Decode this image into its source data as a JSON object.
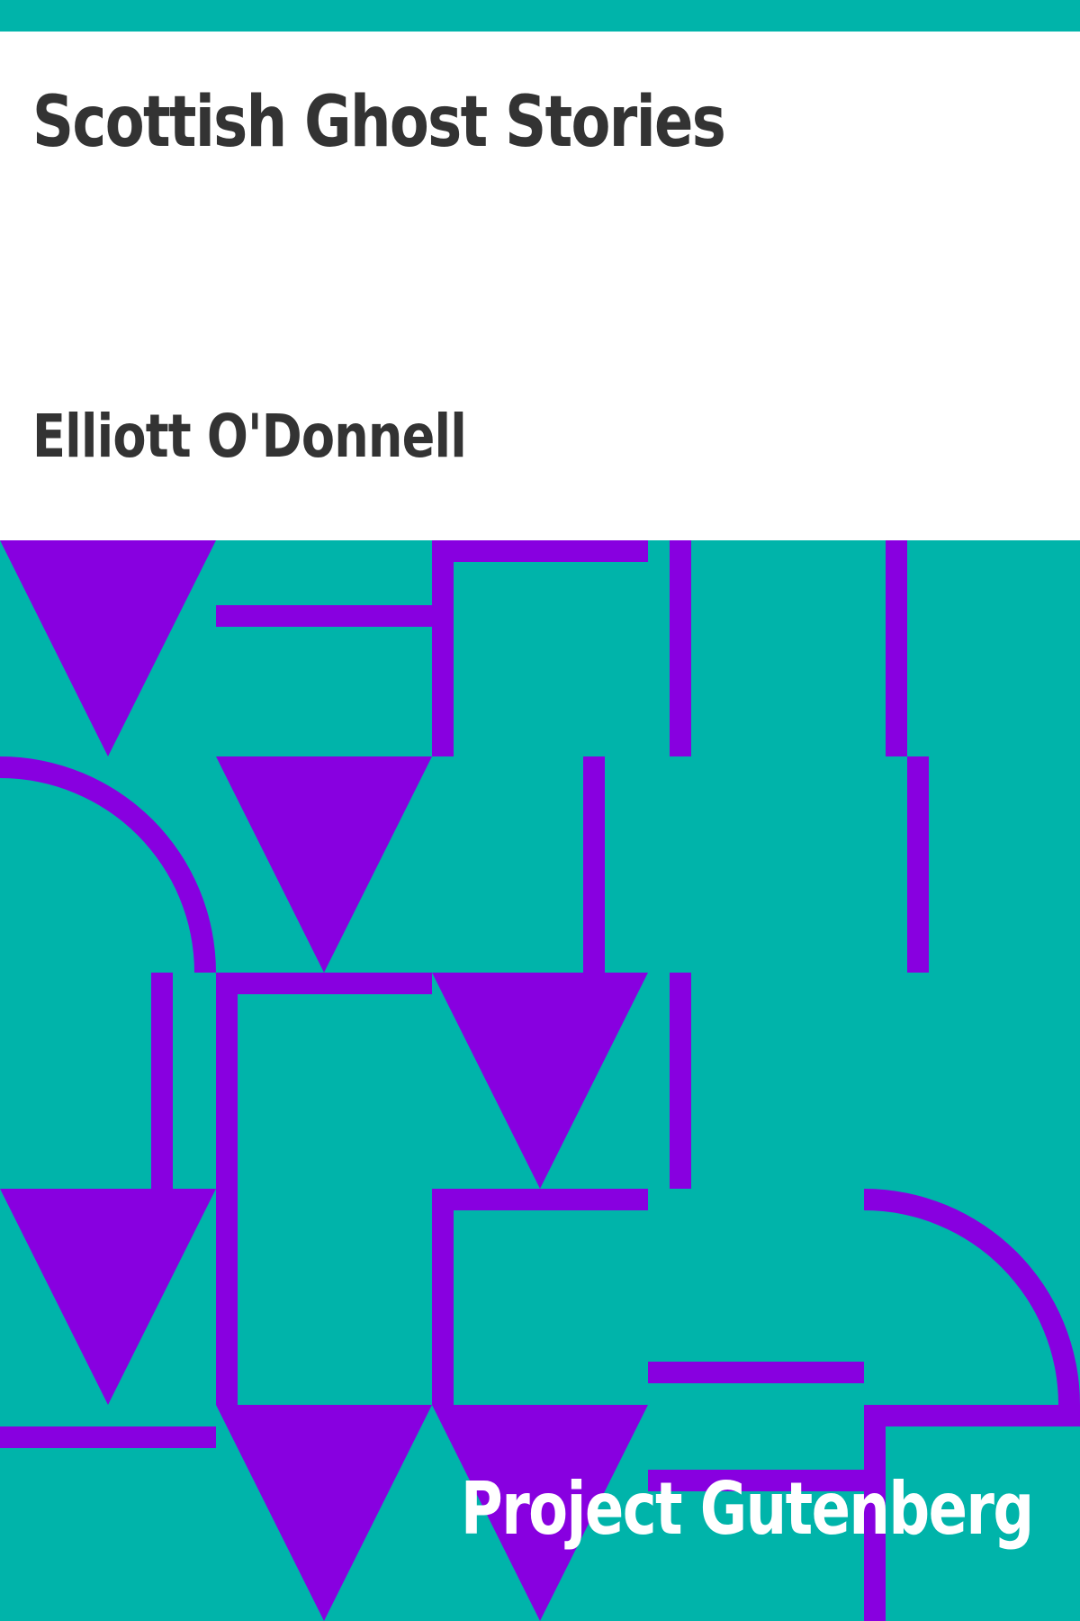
{
  "book": {
    "title": "Scottish Ghost Stories",
    "author": "Elliott O'Donnell",
    "publisher": "Project Gutenberg"
  },
  "colors": {
    "background": "#ffffff",
    "accent_teal": "#00b4aa",
    "pattern_purple": "#8800e0",
    "text_dark": "#333333",
    "text_light": "#ffffff"
  }
}
